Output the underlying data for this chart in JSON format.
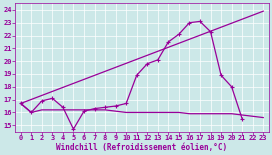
{
  "background_color": "#cce8e8",
  "line_color": "#990099",
  "grid_color": "#ffffff",
  "xlabel": "Windchill (Refroidissement éolien,°C)",
  "xlim": [
    -0.5,
    23.5
  ],
  "ylim": [
    14.5,
    24.5
  ],
  "yticks": [
    15,
    16,
    17,
    18,
    19,
    20,
    21,
    22,
    23,
    24
  ],
  "xticks": [
    0,
    1,
    2,
    3,
    4,
    5,
    6,
    7,
    8,
    9,
    10,
    11,
    12,
    13,
    14,
    15,
    16,
    17,
    18,
    19,
    20,
    21,
    22,
    23
  ],
  "series1_x": [
    0,
    1,
    2,
    3,
    4,
    5,
    6,
    7,
    8,
    9,
    10,
    11,
    12,
    13,
    14,
    15,
    16,
    17,
    18,
    19,
    20,
    21
  ],
  "series1_y": [
    16.7,
    16.0,
    16.9,
    17.1,
    16.4,
    14.7,
    16.1,
    16.3,
    16.4,
    16.5,
    16.7,
    18.9,
    19.8,
    20.1,
    21.5,
    22.1,
    23.0,
    23.1,
    22.3,
    18.9,
    18.0,
    15.5
  ],
  "series2_x": [
    0,
    23
  ],
  "series2_y": [
    16.7,
    23.9
  ],
  "series3_x": [
    0,
    1,
    2,
    3,
    4,
    5,
    6,
    7,
    8,
    9,
    10,
    11,
    12,
    13,
    14,
    15,
    16,
    17,
    18,
    19,
    20,
    21,
    22,
    23
  ],
  "series3_y": [
    16.7,
    16.0,
    16.2,
    16.2,
    16.2,
    16.2,
    16.2,
    16.2,
    16.2,
    16.1,
    16.0,
    16.0,
    16.0,
    16.0,
    16.0,
    16.0,
    15.9,
    15.9,
    15.9,
    15.9,
    15.9,
    15.8,
    15.7,
    15.6
  ],
  "xlabel_fontsize": 5.5,
  "tick_fontsize": 5.0,
  "linewidth": 0.9,
  "marker_size": 3.5,
  "marker_lw": 0.8
}
